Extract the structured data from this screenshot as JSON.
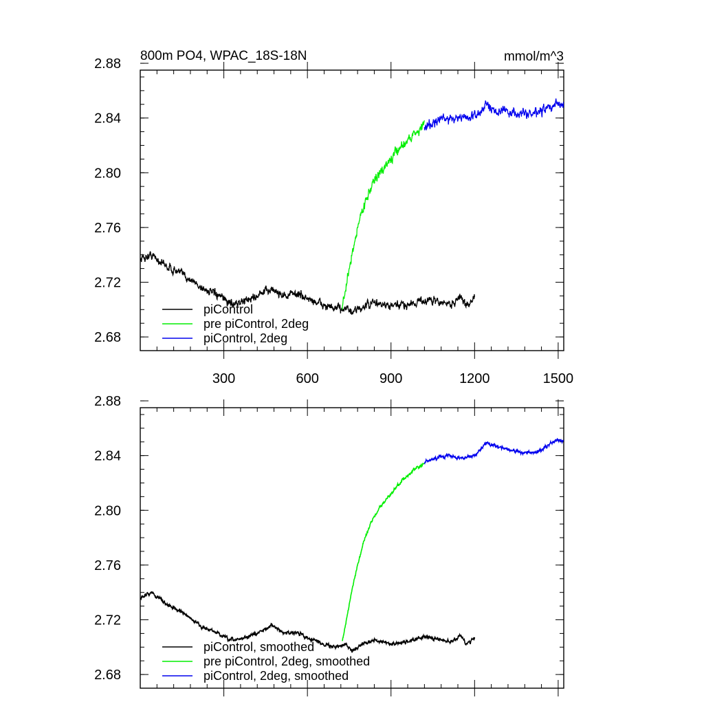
{
  "chart_data": [
    {
      "type": "line",
      "title": "800m PO4, WPAC_18S-18N",
      "units": "mmol/m^3",
      "xlim": [
        0,
        1520
      ],
      "ylim": [
        2.67,
        2.875
      ],
      "yticks": [
        2.68,
        2.72,
        2.76,
        2.8,
        2.84,
        2.88
      ],
      "ytick_labels": [
        "2.68",
        "2.72",
        "2.76",
        "2.80",
        "2.84",
        "2.88"
      ],
      "xticks": [
        300,
        600,
        900,
        1200,
        1500
      ],
      "xtick_labels": [
        "300",
        "600",
        "900",
        "1200",
        "1500"
      ],
      "legend": "lower-left",
      "series": [
        {
          "name": "piControl",
          "color": "#000000",
          "noise": 0.0035,
          "x": [
            0,
            40,
            100,
            160,
            220,
            280,
            320,
            360,
            420,
            470,
            520,
            560,
            600,
            650,
            700,
            740,
            760,
            800,
            840,
            900,
            960,
            1000,
            1040,
            1080,
            1120,
            1150,
            1170,
            1200
          ],
          "y": [
            2.737,
            2.74,
            2.731,
            2.725,
            2.716,
            2.71,
            2.705,
            2.705,
            2.71,
            2.715,
            2.71,
            2.712,
            2.708,
            2.704,
            2.7,
            2.702,
            2.697,
            2.702,
            2.705,
            2.702,
            2.704,
            2.706,
            2.707,
            2.705,
            2.704,
            2.71,
            2.702,
            2.71
          ]
        },
        {
          "name": "pre piControl, 2deg",
          "color": "#00ee00",
          "noise": 0.004,
          "x": [
            725,
            740,
            760,
            780,
            800,
            830,
            860,
            900,
            940,
            980,
            1020
          ],
          "y": [
            2.7,
            2.718,
            2.74,
            2.76,
            2.775,
            2.79,
            2.8,
            2.81,
            2.82,
            2.828,
            2.835
          ]
        },
        {
          "name": "piControl, 2deg",
          "color": "#0000ee",
          "noise": 0.004,
          "x": [
            1020,
            1060,
            1100,
            1150,
            1200,
            1240,
            1280,
            1330,
            1380,
            1420,
            1460,
            1500,
            1520
          ],
          "y": [
            2.834,
            2.838,
            2.84,
            2.84,
            2.841,
            2.849,
            2.846,
            2.844,
            2.843,
            2.843,
            2.847,
            2.85,
            2.85
          ]
        }
      ]
    },
    {
      "type": "line",
      "xlim": [
        0,
        1520
      ],
      "ylim": [
        2.67,
        2.875
      ],
      "yticks": [
        2.68,
        2.72,
        2.76,
        2.8,
        2.84,
        2.88
      ],
      "ytick_labels": [
        "2.68",
        "2.72",
        "2.76",
        "2.80",
        "2.84",
        "2.88"
      ],
      "xticks": [
        300,
        600,
        900,
        1200,
        1500
      ],
      "legend": "lower-left",
      "series": [
        {
          "name": "piControl, smoothed",
          "color": "#000000",
          "noise": 0.0014,
          "x": [
            0,
            40,
            100,
            160,
            220,
            280,
            320,
            360,
            420,
            470,
            520,
            560,
            600,
            650,
            700,
            740,
            760,
            800,
            840,
            900,
            960,
            1000,
            1040,
            1080,
            1120,
            1150,
            1170,
            1200
          ],
          "y": [
            2.736,
            2.74,
            2.731,
            2.724,
            2.715,
            2.71,
            2.705,
            2.706,
            2.71,
            2.716,
            2.71,
            2.711,
            2.707,
            2.703,
            2.7,
            2.702,
            2.697,
            2.703,
            2.705,
            2.702,
            2.704,
            2.707,
            2.707,
            2.705,
            2.704,
            2.709,
            2.702,
            2.707
          ]
        },
        {
          "name": "pre piControl, 2deg, smoothed",
          "color": "#00ee00",
          "noise": 0.0012,
          "x": [
            725,
            740,
            760,
            780,
            800,
            830,
            860,
            900,
            940,
            980,
            1020
          ],
          "y": [
            2.704,
            2.72,
            2.742,
            2.76,
            2.776,
            2.792,
            2.802,
            2.812,
            2.822,
            2.829,
            2.834
          ]
        },
        {
          "name": "piControl, 2deg, smoothed",
          "color": "#0000ee",
          "noise": 0.0013,
          "x": [
            1020,
            1060,
            1100,
            1150,
            1200,
            1240,
            1280,
            1330,
            1380,
            1420,
            1460,
            1500,
            1520
          ],
          "y": [
            2.835,
            2.838,
            2.84,
            2.838,
            2.84,
            2.849,
            2.847,
            2.844,
            2.842,
            2.842,
            2.847,
            2.852,
            2.851
          ]
        }
      ]
    }
  ]
}
